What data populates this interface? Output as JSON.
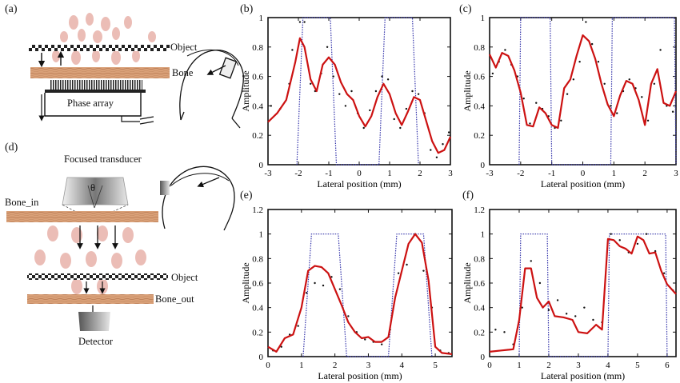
{
  "panel_labels": {
    "a": "(a)",
    "b": "(b)",
    "c": "(c)",
    "d": "(d)",
    "e": "(e)",
    "f": "(f)"
  },
  "schematic_a": {
    "object": "Object",
    "bone": "Bone",
    "phase_array": "Phase array"
  },
  "schematic_d": {
    "focused_transducer": "Focused transducer",
    "theta": "θ",
    "bone_in": "Bone_in",
    "object": "Object",
    "bone_out": "Bone_out",
    "detector": "Detector"
  },
  "colors": {
    "reconstruction": "#cc1111",
    "target": "#3333aa",
    "points": "#111111",
    "bone": "#d9a078",
    "speckle": "#e8b2aa"
  },
  "chart_data": [
    {
      "panel": "b",
      "type": "line",
      "xlabel": "Lateral position (mm)",
      "ylabel": "Amplitude",
      "xlim": [
        -3,
        3
      ],
      "ylim": [
        0,
        1
      ],
      "xticks": [
        -3,
        -2,
        -1,
        0,
        1,
        2,
        3
      ],
      "yticks": [
        0,
        0.2,
        0.4,
        0.6,
        0.8,
        1
      ],
      "ytick_labels": [
        "0",
        "0.2",
        "0.4",
        "0.6",
        "0.8",
        "1"
      ],
      "target": {
        "x": [
          -2.05,
          -1.85,
          -0.95,
          -0.75,
          0.65,
          0.85,
          1.75,
          1.95
        ],
        "y": [
          0,
          1,
          1,
          0,
          0,
          1,
          1,
          0
        ]
      },
      "reconstruction": {
        "x": [
          -3,
          -2.7,
          -2.4,
          -2.1,
          -1.95,
          -1.8,
          -1.6,
          -1.4,
          -1.2,
          -1.0,
          -0.8,
          -0.6,
          -0.4,
          -0.2,
          0,
          0.2,
          0.4,
          0.6,
          0.8,
          1.0,
          1.2,
          1.4,
          1.6,
          1.8,
          2.0,
          2.2,
          2.4,
          2.6,
          2.8,
          3.0
        ],
        "y": [
          0.29,
          0.35,
          0.44,
          0.7,
          0.86,
          0.8,
          0.58,
          0.5,
          0.68,
          0.73,
          0.68,
          0.56,
          0.48,
          0.44,
          0.33,
          0.26,
          0.33,
          0.46,
          0.55,
          0.48,
          0.35,
          0.27,
          0.36,
          0.46,
          0.44,
          0.3,
          0.16,
          0.08,
          0.1,
          0.19
        ]
      },
      "points": {
        "x": [
          -2.9,
          -2.6,
          -2.3,
          -2.2,
          -1.95,
          -1.8,
          -1.6,
          -1.45,
          -1.25,
          -1.05,
          -0.85,
          -0.65,
          -0.45,
          -0.25,
          -0.05,
          0.15,
          0.35,
          0.55,
          0.75,
          0.95,
          1.15,
          1.35,
          1.55,
          1.75,
          1.95,
          2.15,
          2.35,
          2.55,
          2.75,
          2.95
        ],
        "y": [
          0.4,
          0.38,
          0.55,
          0.78,
          0.97,
          0.97,
          0.55,
          0.5,
          0.62,
          0.8,
          0.6,
          0.48,
          0.4,
          0.5,
          0.35,
          0.25,
          0.37,
          0.5,
          0.6,
          0.58,
          0.31,
          0.25,
          0.38,
          0.5,
          0.48,
          0.35,
          0.1,
          0.05,
          0.14,
          0.22
        ]
      }
    },
    {
      "panel": "c",
      "type": "line",
      "xlabel": "Lateral position (mm)",
      "ylabel": "Amplitude",
      "xlim": [
        -3,
        3
      ],
      "ylim": [
        0,
        1
      ],
      "xticks": [
        -3,
        -2,
        -1,
        0,
        1,
        2,
        3
      ],
      "yticks": [
        0,
        0.2,
        0.4,
        0.6,
        0.8,
        1
      ],
      "ytick_labels": [
        "0",
        "0.2",
        "0.4",
        "0.6",
        "0.8",
        "1"
      ],
      "target": {
        "x": [
          -2.05,
          -2.0,
          -1.05,
          -1.0,
          0.9,
          0.95,
          2.95,
          3.0
        ],
        "y": [
          0,
          1,
          1,
          0,
          0,
          1,
          1,
          0
        ]
      },
      "reconstruction": {
        "x": [
          -3,
          -2.8,
          -2.6,
          -2.4,
          -2.2,
          -2.0,
          -1.8,
          -1.6,
          -1.4,
          -1.2,
          -1.0,
          -0.8,
          -0.6,
          -0.4,
          -0.2,
          0,
          0.2,
          0.4,
          0.6,
          0.8,
          1.0,
          1.2,
          1.4,
          1.6,
          1.8,
          2.0,
          2.2,
          2.4,
          2.6,
          2.8,
          3.0
        ],
        "y": [
          0.75,
          0.66,
          0.76,
          0.74,
          0.64,
          0.49,
          0.27,
          0.26,
          0.39,
          0.35,
          0.27,
          0.25,
          0.52,
          0.58,
          0.74,
          0.88,
          0.84,
          0.72,
          0.55,
          0.41,
          0.33,
          0.47,
          0.57,
          0.55,
          0.44,
          0.27,
          0.55,
          0.65,
          0.42,
          0.4,
          0.5
        ]
      },
      "points": {
        "x": [
          -2.9,
          -2.7,
          -2.5,
          -2.3,
          -2.1,
          -1.9,
          -1.7,
          -1.5,
          -1.3,
          -1.1,
          -0.9,
          -0.7,
          -0.5,
          -0.3,
          -0.1,
          0.1,
          0.3,
          0.5,
          0.7,
          0.9,
          1.1,
          1.3,
          1.5,
          1.7,
          1.9,
          2.1,
          2.3,
          2.5,
          2.7,
          2.9
        ],
        "y": [
          0.62,
          0.7,
          0.78,
          0.68,
          0.6,
          0.45,
          0.28,
          0.42,
          0.38,
          0.33,
          0.25,
          0.3,
          0.48,
          0.58,
          0.7,
          0.97,
          0.82,
          0.7,
          0.55,
          0.4,
          0.35,
          0.5,
          0.58,
          0.52,
          0.46,
          0.3,
          0.55,
          0.78,
          0.4,
          0.36
        ]
      }
    },
    {
      "panel": "e",
      "type": "line",
      "xlabel": "Lateral position (mm)",
      "ylabel": "Amplitude",
      "xlim": [
        0,
        5.5
      ],
      "ylim": [
        0,
        1.2
      ],
      "xticks": [
        0,
        1,
        2,
        3,
        4,
        5
      ],
      "yticks": [
        0,
        0.2,
        0.4,
        0.6,
        0.8,
        1,
        1.2
      ],
      "ytick_labels": [
        "0",
        "0.2",
        "0.4",
        "0.6",
        "0.8",
        "1",
        "1.2"
      ],
      "target": {
        "x": [
          1.05,
          1.3,
          2.1,
          2.35,
          3.6,
          3.85,
          4.65,
          4.9
        ],
        "y": [
          0,
          1,
          1,
          0,
          0,
          1,
          1,
          0
        ]
      },
      "reconstruction": {
        "x": [
          0,
          0.25,
          0.5,
          0.75,
          1.0,
          1.2,
          1.4,
          1.6,
          1.8,
          2.0,
          2.2,
          2.4,
          2.6,
          2.8,
          3.0,
          3.2,
          3.4,
          3.6,
          3.8,
          4.0,
          4.2,
          4.4,
          4.6,
          4.8,
          5.0,
          5.2,
          5.5
        ],
        "y": [
          0.08,
          0.04,
          0.15,
          0.18,
          0.4,
          0.7,
          0.74,
          0.73,
          0.68,
          0.55,
          0.42,
          0.28,
          0.2,
          0.15,
          0.16,
          0.12,
          0.12,
          0.16,
          0.48,
          0.7,
          0.92,
          1.0,
          0.93,
          0.62,
          0.08,
          0.03,
          0.02
        ]
      },
      "points": {
        "x": [
          0.15,
          0.4,
          0.65,
          0.9,
          1.15,
          1.4,
          1.65,
          1.9,
          2.15,
          2.4,
          2.65,
          2.9,
          3.15,
          3.4,
          3.65,
          3.9,
          4.15,
          4.4,
          4.65,
          4.9,
          5.15,
          5.4
        ],
        "y": [
          0.05,
          0.08,
          0.18,
          0.25,
          0.52,
          0.6,
          0.58,
          0.65,
          0.55,
          0.33,
          0.2,
          0.14,
          0.12,
          0.1,
          0.22,
          0.68,
          0.75,
          1.0,
          0.7,
          0.4,
          0.05,
          0.03
        ]
      }
    },
    {
      "panel": "f",
      "type": "line",
      "xlabel": "Lateral position (mm)",
      "ylabel": "Amplitude",
      "xlim": [
        0,
        6.3
      ],
      "ylim": [
        0,
        1.2
      ],
      "xticks": [
        0,
        1,
        2,
        3,
        4,
        5,
        6
      ],
      "yticks": [
        0,
        0.2,
        0.4,
        0.6,
        0.8,
        1,
        1.2
      ],
      "ytick_labels": [
        "0",
        "0.2",
        "0.4",
        "0.6",
        "0.8",
        "1",
        "1.2"
      ],
      "target": {
        "x": [
          1.0,
          1.05,
          1.95,
          2.0,
          4.0,
          4.05,
          5.95,
          6.0
        ],
        "y": [
          0,
          1,
          1,
          0,
          0,
          1,
          1,
          0
        ]
      },
      "reconstruction": {
        "x": [
          0,
          0.4,
          0.8,
          1.0,
          1.2,
          1.4,
          1.6,
          1.8,
          2.0,
          2.2,
          2.5,
          2.8,
          3.0,
          3.3,
          3.6,
          3.8,
          4.0,
          4.2,
          4.4,
          4.6,
          4.8,
          5.0,
          5.2,
          5.4,
          5.6,
          5.8,
          6.0,
          6.3
        ],
        "y": [
          0.04,
          0.05,
          0.06,
          0.3,
          0.72,
          0.72,
          0.48,
          0.4,
          0.45,
          0.33,
          0.32,
          0.3,
          0.2,
          0.19,
          0.26,
          0.22,
          0.96,
          0.95,
          0.9,
          0.88,
          0.84,
          0.98,
          0.95,
          0.84,
          0.85,
          0.7,
          0.59,
          0.51
        ]
      },
      "points": {
        "x": [
          0.2,
          0.5,
          0.8,
          1.1,
          1.4,
          1.7,
          2.0,
          2.3,
          2.6,
          2.9,
          3.2,
          3.5,
          3.8,
          4.1,
          4.4,
          4.7,
          5.0,
          5.3,
          5.6,
          5.9,
          6.2
        ],
        "y": [
          0.22,
          0.2,
          0.1,
          0.4,
          0.78,
          0.6,
          0.38,
          0.46,
          0.35,
          0.33,
          0.4,
          0.3,
          0.28,
          1.0,
          0.95,
          0.85,
          0.92,
          1.0,
          0.86,
          0.68,
          0.54
        ]
      }
    }
  ]
}
